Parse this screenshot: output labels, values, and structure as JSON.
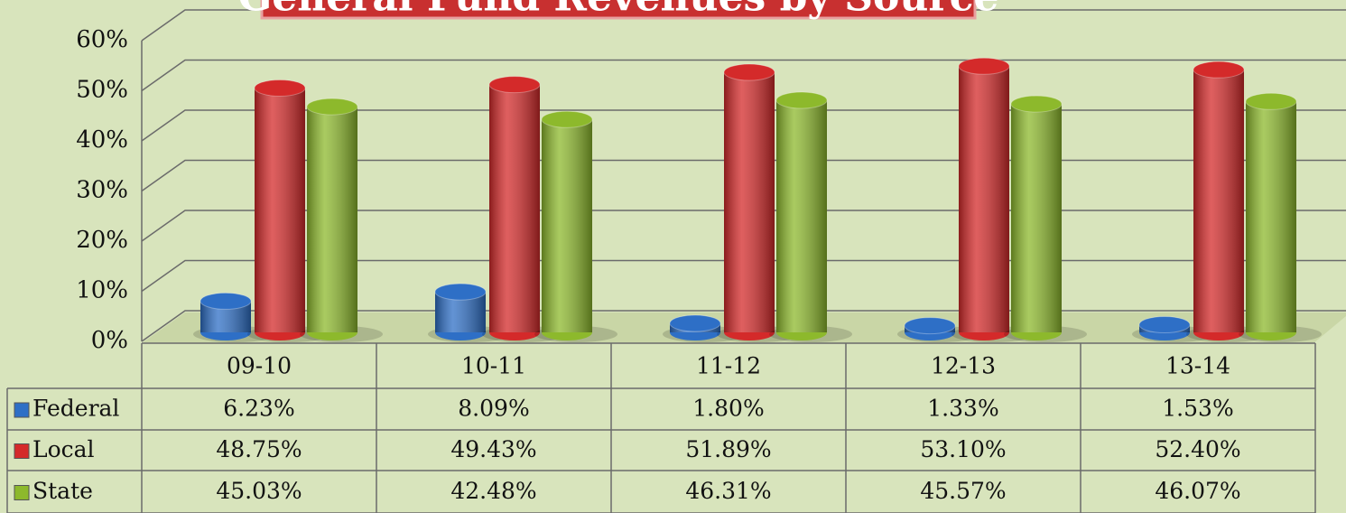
{
  "chart_data": {
    "type": "bar",
    "title": "General Fund Revenues by Source",
    "categories": [
      "09-10",
      "10-11",
      "11-12",
      "12-13",
      "13-14"
    ],
    "series": [
      {
        "name": "Federal",
        "color": "#2e6fc6",
        "values": [
          6.23,
          8.09,
          1.8,
          1.33,
          1.53
        ],
        "value_labels": [
          "6.23%",
          "8.09%",
          "1.80%",
          "1.33%",
          "1.53%"
        ]
      },
      {
        "name": "Local",
        "color": "#d42a2a",
        "values": [
          48.75,
          49.43,
          51.89,
          53.1,
          52.4
        ],
        "value_labels": [
          "48.75%",
          "49.43%",
          "51.89%",
          "53.10%",
          "52.40%"
        ]
      },
      {
        "name": "State",
        "color": "#8db92c",
        "values": [
          45.03,
          42.48,
          46.31,
          45.57,
          46.07
        ],
        "value_labels": [
          "45.03%",
          "42.48%",
          "46.31%",
          "45.57%",
          "46.07%"
        ]
      }
    ],
    "ylim": [
      0,
      60
    ],
    "yticks": [
      {
        "value": 0,
        "label": "0%"
      },
      {
        "value": 10,
        "label": "10%"
      },
      {
        "value": 20,
        "label": "20%"
      },
      {
        "value": 30,
        "label": "30%"
      },
      {
        "value": 40,
        "label": "40%"
      },
      {
        "value": 50,
        "label": "50%"
      },
      {
        "value": 60,
        "label": "60%"
      }
    ],
    "grid": true
  }
}
